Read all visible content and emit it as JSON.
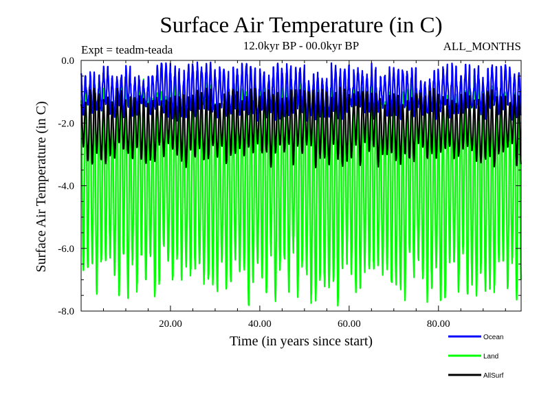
{
  "chart_data": {
    "type": "line",
    "title": "Surface Air Temperature (in C)",
    "subtitle_left": "Expt = teadm-teada",
    "subtitle_center": "12.0kyr BP - 00.0kyr BP",
    "subtitle_right": "ALL_MONTHS",
    "xlabel": "Time (in years since start)",
    "ylabel": "Surface Air Temperature (in C)",
    "xlim": [
      0,
      98.5
    ],
    "ylim": [
      -8.0,
      0.0
    ],
    "xticks": [
      20,
      40,
      60,
      80
    ],
    "xtick_labels": [
      "20.00",
      "40.00",
      "60.00",
      "80.00"
    ],
    "yticks": [
      0,
      -2,
      -4,
      -6,
      -8
    ],
    "ytick_labels": [
      "0.0",
      "-2.0",
      "-4.0",
      "-6.0",
      "-8.0"
    ],
    "grid": false,
    "legend_position": "bottom-right",
    "period_years": 1.0,
    "series": [
      {
        "name": "Ocean",
        "color": "#0000ff",
        "mean": -1.25,
        "amplitude": 0.35,
        "min_range": [
          -1.9,
          -1.4
        ],
        "max_range": [
          -0.9,
          -0.1
        ],
        "noise": 0.18
      },
      {
        "name": "Land",
        "color": "#00ff00",
        "mean": -4.1,
        "amplitude": 2.6,
        "min_range": [
          -7.8,
          -6.0
        ],
        "max_range": [
          -1.6,
          -0.6
        ],
        "noise": 0.35
      },
      {
        "name": "AllSurf",
        "color": "#000000",
        "mean": -2.25,
        "amplitude": 0.9,
        "min_range": [
          -3.4,
          -2.6
        ],
        "max_range": [
          -1.5,
          -0.9
        ],
        "noise": 0.12
      }
    ]
  }
}
